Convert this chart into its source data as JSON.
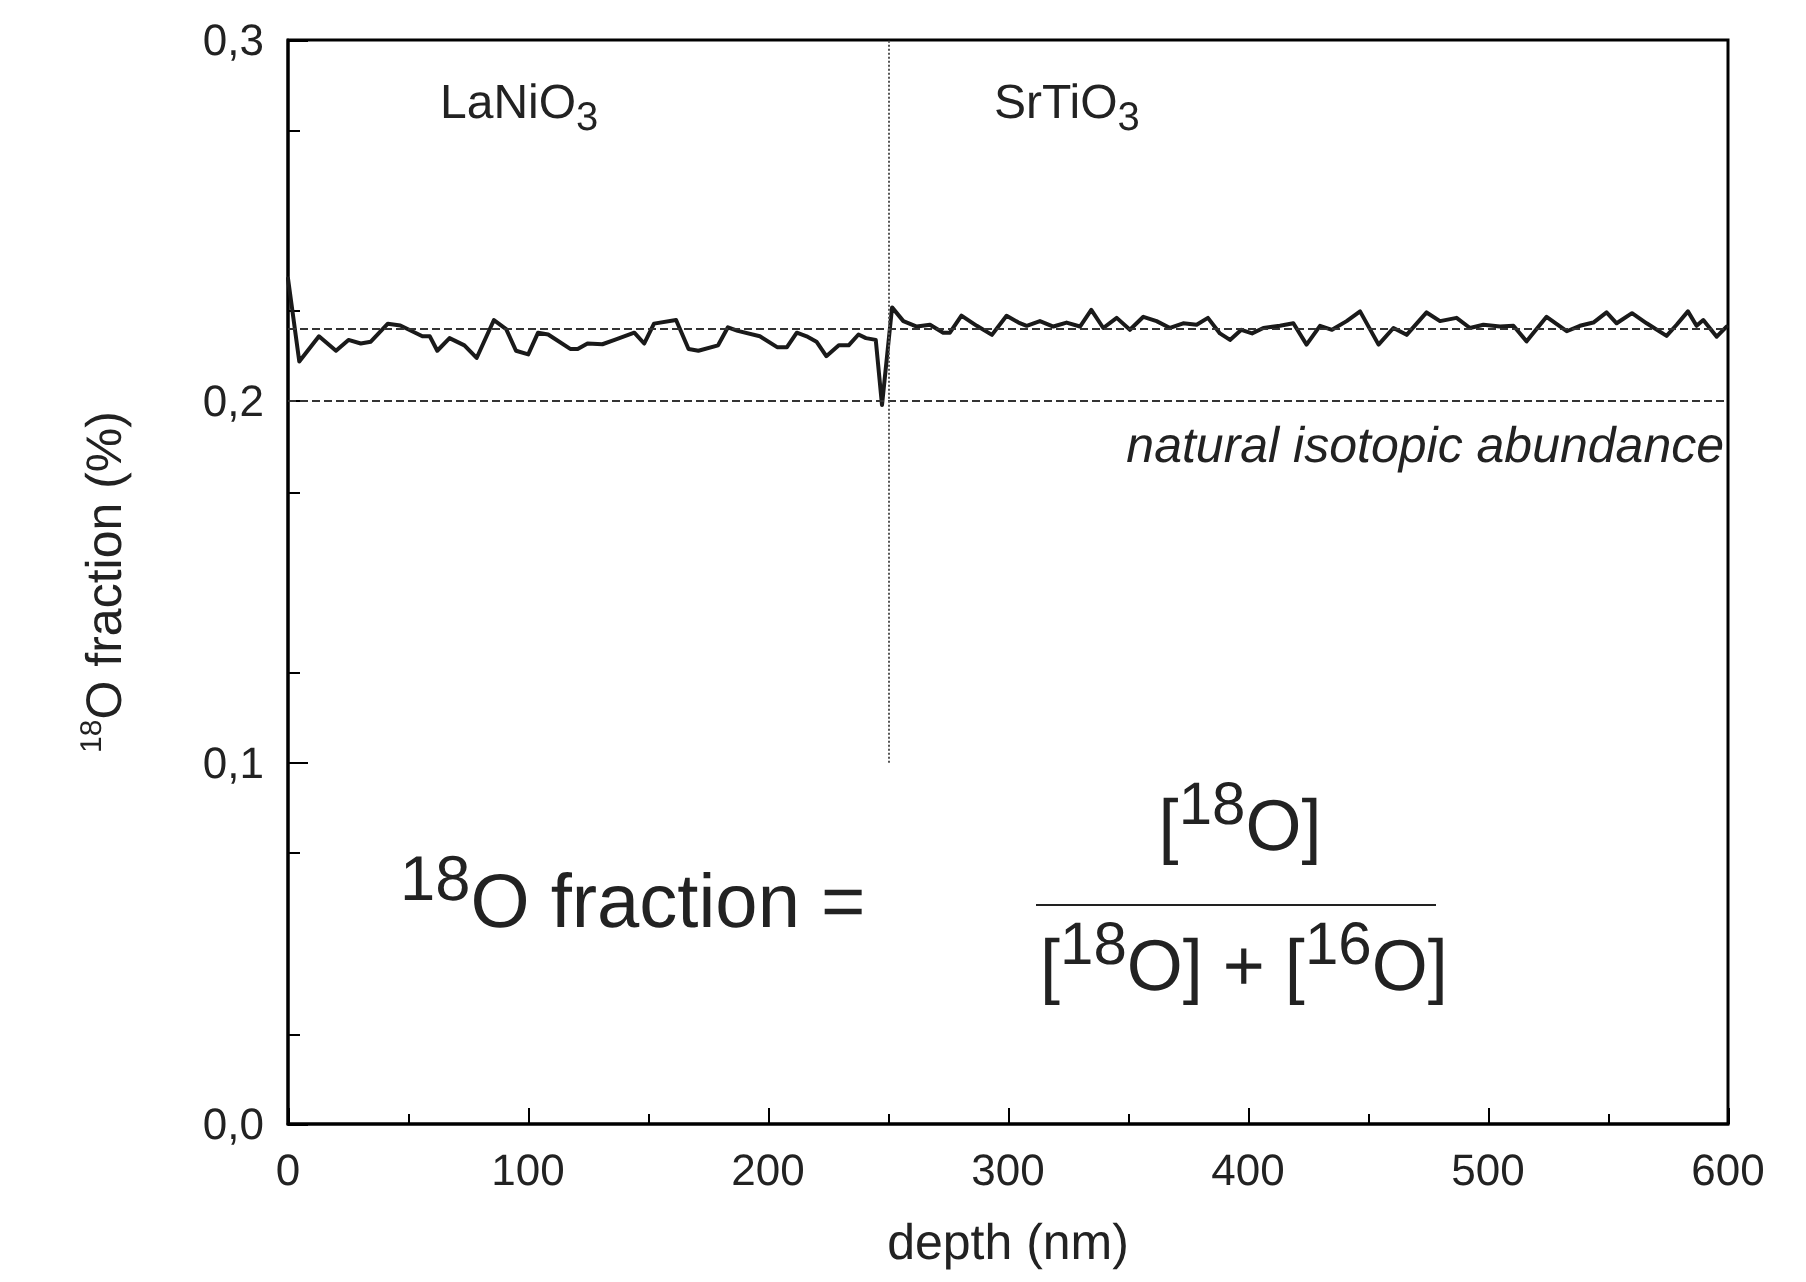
{
  "chart_data": {
    "type": "line",
    "xlabel": "depth (nm)",
    "ylabel": "$^{18}$O fraction (%)",
    "xlim": [
      0,
      600
    ],
    "xticks": [
      0,
      100,
      200,
      300,
      400,
      500,
      600
    ],
    "ylim": [
      0,
      0.3
    ],
    "yticks": [
      {
        "value": 0,
        "label": "0,0"
      },
      {
        "value": 0.1,
        "label": "0,1"
      },
      {
        "value": 0.2,
        "label": "0,2"
      },
      {
        "value": 0.3,
        "label": "0,3"
      }
    ],
    "grid": false,
    "marker": "none",
    "line_style": "solid",
    "series": [
      {
        "color": "#1a1a1a",
        "x": [
          0,
          4.7,
          12.9,
          20,
          25.2,
          30.3,
          34.5,
          41.6,
          46.8,
          56,
          59.1,
          62.2,
          67.3,
          73.5,
          78.6,
          85.8,
          90.9,
          95,
          100.1,
          104.2,
          108.4,
          117.6,
          120.7,
          124.8,
          131,
          136.1,
          144.3,
          148.4,
          152.5,
          161.7,
          166.9,
          171,
          179.2,
          183.3,
          187.4,
          196.6,
          203.8,
          207.9,
          212,
          216.1,
          220.2,
          224.3,
          229.5,
          233.6,
          237.7,
          240.8,
          244.9,
          247.5,
          251.7,
          256.4,
          262,
          267.5,
          273,
          275.8,
          280.6,
          287,
          293.3,
          299.4,
          304.4,
          307.8,
          313.3,
          318.9,
          324.4,
          330,
          334.7,
          339.7,
          345.3,
          350.8,
          356.4,
          361.9,
          367.5,
          373,
          378.6,
          383.3,
          388.3,
          392.5,
          397.2,
          401.7,
          406.4,
          413.3,
          418.9,
          424.4,
          430,
          435,
          441.1,
          446.7,
          454.4,
          460.6,
          466.1,
          474.4,
          480,
          486.9,
          492.5,
          498.1,
          505,
          510.6,
          516.1,
          524.4,
          532.8,
          538.3,
          543.9,
          549.4,
          553.6,
          560,
          566.1,
          574.4,
          578.6,
          583.3,
          586.9,
          589.7,
          595.3,
          599.4
        ],
        "values": [
          0.234,
          0.211,
          0.218,
          0.214,
          0.217,
          0.216,
          0.2165,
          0.2215,
          0.221,
          0.218,
          0.218,
          0.214,
          0.2175,
          0.2155,
          0.212,
          0.2225,
          0.22,
          0.214,
          0.213,
          0.219,
          0.2185,
          0.2145,
          0.2145,
          0.216,
          0.2158,
          0.217,
          0.219,
          0.216,
          0.2215,
          0.2225,
          0.2145,
          0.214,
          0.2155,
          0.2205,
          0.2195,
          0.218,
          0.215,
          0.215,
          0.219,
          0.218,
          0.2165,
          0.2125,
          0.2155,
          0.2155,
          0.2185,
          0.2175,
          0.217,
          0.199,
          0.226,
          0.2222,
          0.2207,
          0.2212,
          0.219,
          0.219,
          0.2237,
          0.2209,
          0.2184,
          0.2237,
          0.2218,
          0.2209,
          0.2222,
          0.2207,
          0.2218,
          0.2207,
          0.2253,
          0.2203,
          0.2231,
          0.2198,
          0.2234,
          0.2222,
          0.2203,
          0.2216,
          0.2212,
          0.2231,
          0.2188,
          0.217,
          0.2198,
          0.2188,
          0.2203,
          0.2209,
          0.2216,
          0.2157,
          0.2209,
          0.2198,
          0.2222,
          0.2249,
          0.2157,
          0.2203,
          0.2184,
          0.2246,
          0.2222,
          0.2231,
          0.2203,
          0.2212,
          0.2207,
          0.2209,
          0.2166,
          0.2234,
          0.2194,
          0.2209,
          0.2218,
          0.2246,
          0.2216,
          0.2244,
          0.2216,
          0.2181,
          0.2212,
          0.2249,
          0.2209,
          0.2225,
          0.2179,
          0.2207
        ]
      }
    ],
    "ref_lines": [
      {
        "axis": "y",
        "value": 0.2,
        "label": "natural isotopic abundance",
        "color": "#333333",
        "line_style": "dashed"
      },
      {
        "axis": "y",
        "value": 0.221,
        "color": "#333333",
        "line_style": "dashed"
      },
      {
        "axis": "x",
        "value": 250,
        "color": "#555555",
        "line_style": "dotted"
      }
    ],
    "annotations": [
      "LaNiO$_{3}$",
      "SrTiO$_{3}$",
      "$^{18}$O fraction =",
      "[$^{18}$O]",
      "[$^{18}$O] + [$^{16}$O]"
    ]
  }
}
